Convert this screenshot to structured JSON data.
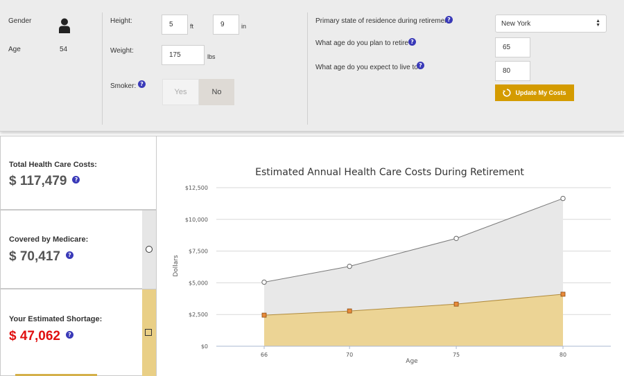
{
  "profile": {
    "gender_label": "Gender",
    "age_label": "Age",
    "age_value": "54"
  },
  "body": {
    "height_label": "Height:",
    "height_ft": "5",
    "height_ft_unit": "ft",
    "height_in": "9",
    "height_in_unit": "in",
    "weight_label": "Weight:",
    "weight_value": "175",
    "weight_unit": "lbs",
    "smoker_label": "Smoker:",
    "smoker_yes": "Yes",
    "smoker_no": "No",
    "smoker_selected": "No"
  },
  "retirement": {
    "state_label": "Primary state of residence during retirement:",
    "state_value": "New York",
    "retire_age_label": "What age do you plan to retire?",
    "retire_age_value": "65",
    "live_to_label": "What age do you expect to live to?",
    "live_to_value": "80",
    "update_button": "Update My Costs"
  },
  "summary": {
    "total_label": "Total Health Care Costs:",
    "total_value": "$ 117,479",
    "medicare_label": "Covered by Medicare:",
    "medicare_value": "$ 70,417",
    "shortage_label": "Your Estimated Shortage:",
    "shortage_value": "$ 47,062"
  },
  "colors": {
    "accent": "#d49b00",
    "shortage_red": "#e01010",
    "help_blue": "#3a3ab8",
    "total_fill": "#e8e8e8",
    "shortage_fill": "#ecd495",
    "shortage_marker": "#e88a3a"
  },
  "chart_data": {
    "type": "area",
    "title": "Estimated Annual Health Care Costs During Retirement",
    "xlabel": "Age",
    "ylabel": "Dollars",
    "x": [
      66,
      70,
      75,
      80
    ],
    "x_tick_labels": [
      "66",
      "70",
      "75",
      "80"
    ],
    "y_tick_labels": [
      "$0",
      "$2,500",
      "$5,000",
      "$7,500",
      "$10,000",
      "$12,500"
    ],
    "ylim": [
      0,
      12500
    ],
    "grid": true,
    "series": [
      {
        "values": [
          5050,
          6300,
          8500,
          11650
        ]
      },
      {
        "values": [
          2450,
          2780,
          3320,
          4100
        ]
      }
    ]
  }
}
